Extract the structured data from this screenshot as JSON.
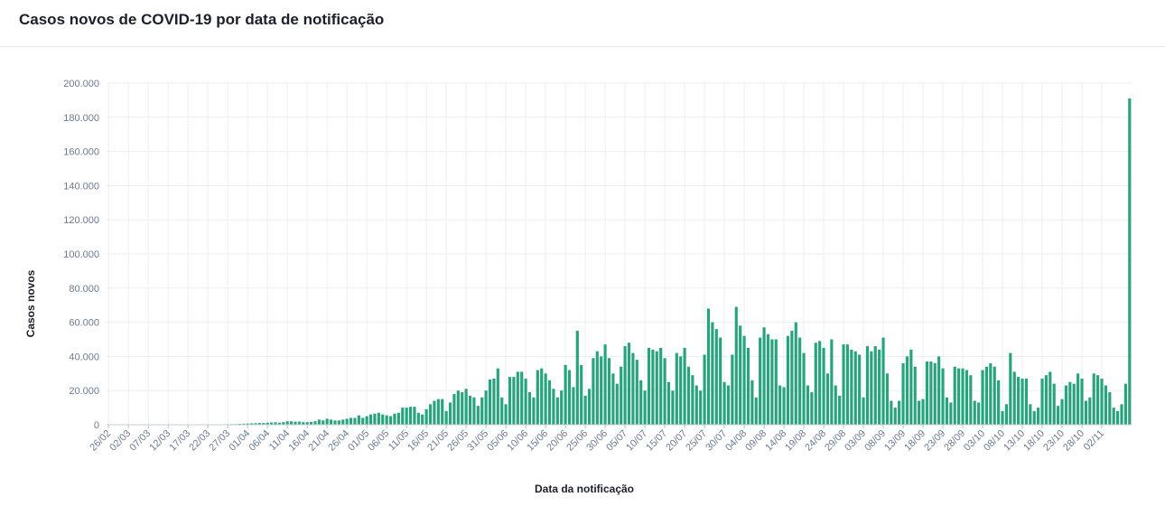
{
  "header": {
    "title": "Casos novos de COVID-19 por data de notificação"
  },
  "colors": {
    "bar": "#27a37d",
    "grid": "#eceef1",
    "axis_text": "#6b7b93",
    "title": "#1b1f2a"
  },
  "chart_data": {
    "type": "bar",
    "xlabel": "Data da notificação",
    "ylabel": "Casos novos",
    "ylim": [
      0,
      200000
    ],
    "yticks": [
      "0",
      "20.000",
      "40.000",
      "60.000",
      "80.000",
      "100.000",
      "120.000",
      "140.000",
      "160.000",
      "180.000",
      "200.000"
    ],
    "ytick_values": [
      0,
      20000,
      40000,
      60000,
      80000,
      100000,
      120000,
      140000,
      160000,
      180000,
      200000
    ],
    "xtick_labels": [
      "26/02",
      "02/03",
      "07/03",
      "12/03",
      "17/03",
      "22/03",
      "27/03",
      "01/04",
      "06/04",
      "11/04",
      "16/04",
      "21/04",
      "26/04",
      "01/05",
      "06/05",
      "11/05",
      "16/05",
      "21/05",
      "26/05",
      "31/05",
      "05/06",
      "10/06",
      "15/06",
      "20/06",
      "25/06",
      "30/06",
      "05/07",
      "10/07",
      "15/07",
      "20/07",
      "25/07",
      "30/07",
      "04/08",
      "09/08",
      "14/08",
      "19/08",
      "24/08",
      "29/08",
      "03/09",
      "08/09",
      "13/09",
      "18/09",
      "23/09",
      "28/09",
      "03/10",
      "08/10",
      "13/10",
      "18/10",
      "23/10",
      "28/10",
      "02/11"
    ],
    "grid": true,
    "start_date": "2020-02-26",
    "values": [
      0,
      0,
      0,
      0,
      0,
      0,
      0,
      0,
      0,
      0,
      0,
      0,
      0,
      0,
      0,
      0,
      0,
      0,
      0,
      50,
      50,
      0,
      0,
      0,
      0,
      100,
      100,
      200,
      200,
      250,
      300,
      350,
      400,
      500,
      600,
      700,
      800,
      900,
      1000,
      1000,
      1200,
      1300,
      1400,
      1200,
      1500,
      2000,
      2000,
      1800,
      1800,
      1500,
      1500,
      1700,
      2000,
      3000,
      2500,
      3500,
      3000,
      2500,
      2500,
      3000,
      3500,
      4000,
      4000,
      5500,
      4000,
      5000,
      6000,
      6500,
      7000,
      6000,
      5500,
      5000,
      6500,
      7000,
      10000,
      10000,
      10500,
      10500,
      7000,
      6000,
      9000,
      12000,
      14000,
      15000,
      15000,
      8000,
      13000,
      18000,
      20000,
      19000,
      21000,
      17000,
      16000,
      11000,
      16000,
      20000,
      26500,
      27000,
      33000,
      16000,
      12000,
      28000,
      28000,
      31000,
      31000,
      27000,
      19000,
      16000,
      32000,
      33000,
      30000,
      26000,
      21000,
      16000,
      20000,
      35000,
      32000,
      22000,
      55000,
      35000,
      17000,
      21000,
      39000,
      43000,
      40000,
      47000,
      39000,
      30000,
      24000,
      34000,
      46000,
      48000,
      42000,
      38000,
      26000,
      20000,
      45000,
      44000,
      43000,
      45000,
      39000,
      25000,
      20000,
      42000,
      40000,
      45000,
      34000,
      29000,
      23000,
      20000,
      41000,
      68000,
      60000,
      56000,
      51000,
      25000,
      23000,
      41000,
      69000,
      58000,
      52000,
      45000,
      26000,
      16000,
      51000,
      57000,
      53000,
      50000,
      50000,
      23000,
      22000,
      52000,
      55000,
      60000,
      51000,
      42000,
      23000,
      19000,
      48000,
      49000,
      45000,
      30000,
      50000,
      23000,
      17000,
      47000,
      47000,
      44000,
      43000,
      41000,
      16000,
      46000,
      43000,
      46000,
      44000,
      51000,
      30000,
      14000,
      10000,
      14000,
      36000,
      40000,
      44000,
      34000,
      14000,
      15000,
      37000,
      37000,
      36000,
      40000,
      33000,
      16000,
      13000,
      34000,
      33000,
      33000,
      32000,
      29000,
      14000,
      13000,
      32000,
      34000,
      36000,
      34000,
      26000,
      8000,
      12000,
      42000,
      31000,
      28000,
      27000,
      27000,
      12000,
      8000,
      10000,
      27000,
      29000,
      31000,
      24000,
      11000,
      15000,
      23000,
      25000,
      24000,
      30000,
      27000,
      14000,
      16000,
      30000,
      29000,
      27000,
      23000,
      19000,
      10000,
      8000,
      12000,
      24000,
      191000
    ]
  }
}
